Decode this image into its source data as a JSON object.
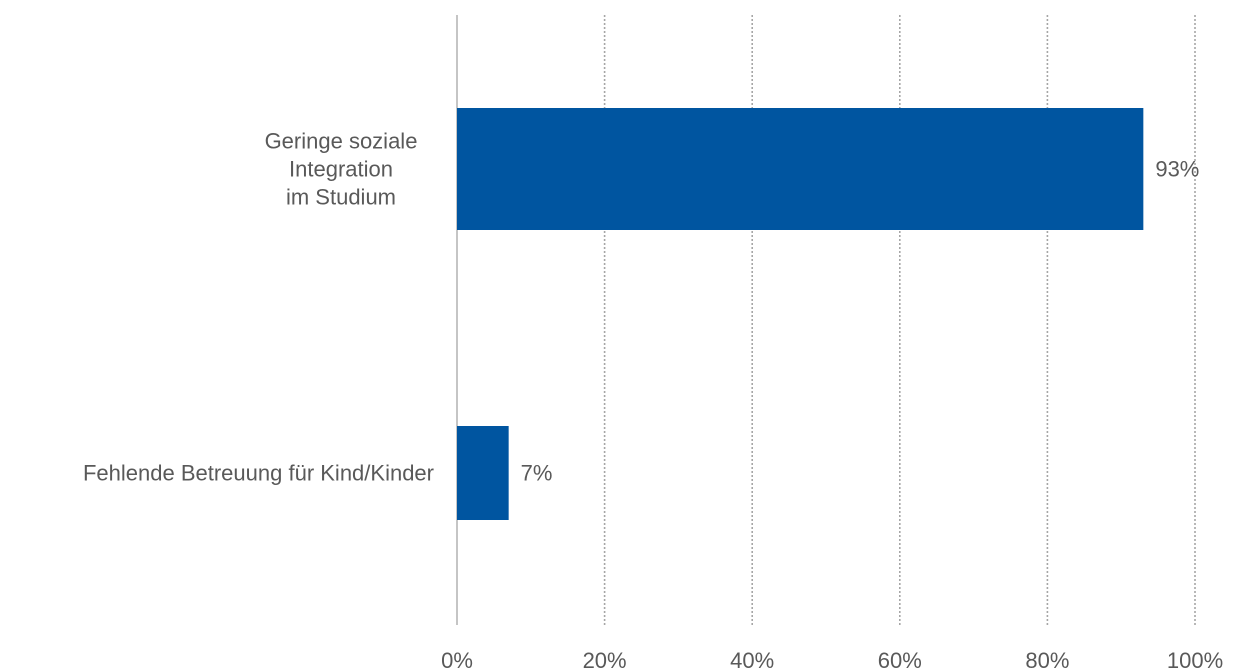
{
  "chart_data": {
    "type": "bar",
    "orientation": "horizontal",
    "categories": [
      [
        "Geringe soziale",
        "Integration",
        "im Studium"
      ],
      [
        "Fehlende Betreuung für Kind/Kinder"
      ]
    ],
    "values": [
      93,
      7
    ],
    "value_labels": [
      "93%",
      "7%"
    ],
    "xlim": [
      0,
      100
    ],
    "x_ticks": [
      0,
      20,
      40,
      60,
      80,
      100
    ],
    "x_tick_labels": [
      "0%",
      "20%",
      "40%",
      "60%",
      "80%",
      "100%"
    ],
    "grid": "vertical dotted",
    "colors": {
      "bar": "#0055A0",
      "text": "#595959",
      "grid": "#A6A6A6",
      "axis": "#A6A6A6"
    }
  }
}
